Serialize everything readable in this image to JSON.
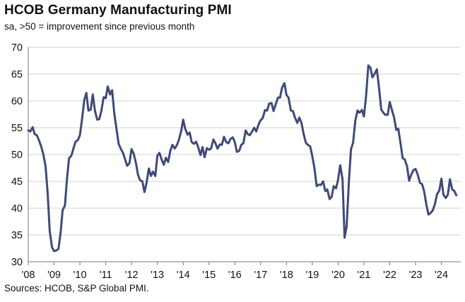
{
  "chart_data": {
    "type": "line",
    "title": "HCOB Germany Manufacturing PMI",
    "subtitle": "sa, >50 = improvement since previous month",
    "source": "Sources: HCOB, S&P Global PMI.",
    "xlabel": "",
    "ylabel": "",
    "ylim": [
      30,
      70
    ],
    "yticks": [
      30,
      35,
      40,
      45,
      50,
      55,
      60,
      65,
      70
    ],
    "xlim": [
      2008.0,
      2024.75
    ],
    "xtick_labels": [
      "'08",
      "'09",
      "'10",
      "'11",
      "'12",
      "'13",
      "'14",
      "'15",
      "'16",
      "'17",
      "'18",
      "'19",
      "'20",
      "'21",
      "'22",
      "'23",
      "'24"
    ],
    "grid": "horizontal",
    "series": [
      {
        "name": "HCOB Germany Manufacturing PMI",
        "color": "#3f4a78",
        "points": [
          [
            2008.0,
            54.5
          ],
          [
            2008.08,
            54.3
          ],
          [
            2008.17,
            55.1
          ],
          [
            2008.25,
            53.8
          ],
          [
            2008.33,
            53.6
          ],
          [
            2008.42,
            52.6
          ],
          [
            2008.5,
            51.5
          ],
          [
            2008.58,
            50.1
          ],
          [
            2008.67,
            47.8
          ],
          [
            2008.75,
            42.9
          ],
          [
            2008.83,
            35.8
          ],
          [
            2008.92,
            32.7
          ],
          [
            2009.0,
            32.0
          ],
          [
            2009.08,
            32.1
          ],
          [
            2009.17,
            32.4
          ],
          [
            2009.25,
            35.3
          ],
          [
            2009.33,
            39.6
          ],
          [
            2009.42,
            40.5
          ],
          [
            2009.5,
            45.5
          ],
          [
            2009.58,
            49.3
          ],
          [
            2009.67,
            49.8
          ],
          [
            2009.75,
            51.1
          ],
          [
            2009.83,
            52.4
          ],
          [
            2009.92,
            52.7
          ],
          [
            2010.0,
            53.6
          ],
          [
            2010.08,
            56.5
          ],
          [
            2010.17,
            60.2
          ],
          [
            2010.25,
            61.5
          ],
          [
            2010.33,
            58.2
          ],
          [
            2010.42,
            58.4
          ],
          [
            2010.5,
            61.2
          ],
          [
            2010.58,
            58.2
          ],
          [
            2010.67,
            56.5
          ],
          [
            2010.75,
            56.6
          ],
          [
            2010.83,
            58.1
          ],
          [
            2010.92,
            60.7
          ],
          [
            2011.0,
            60.5
          ],
          [
            2011.08,
            62.7
          ],
          [
            2011.17,
            61.2
          ],
          [
            2011.25,
            62.0
          ],
          [
            2011.33,
            57.7
          ],
          [
            2011.42,
            54.6
          ],
          [
            2011.5,
            52.0
          ],
          [
            2011.58,
            51.1
          ],
          [
            2011.67,
            50.3
          ],
          [
            2011.75,
            49.1
          ],
          [
            2011.83,
            47.9
          ],
          [
            2011.92,
            48.4
          ],
          [
            2012.0,
            51.0
          ],
          [
            2012.08,
            50.2
          ],
          [
            2012.17,
            48.4
          ],
          [
            2012.25,
            46.2
          ],
          [
            2012.33,
            45.2
          ],
          [
            2012.42,
            45.0
          ],
          [
            2012.5,
            43.0
          ],
          [
            2012.58,
            44.7
          ],
          [
            2012.67,
            47.4
          ],
          [
            2012.75,
            46.0
          ],
          [
            2012.83,
            46.8
          ],
          [
            2012.92,
            46.0
          ],
          [
            2013.0,
            49.8
          ],
          [
            2013.08,
            50.3
          ],
          [
            2013.17,
            49.0
          ],
          [
            2013.25,
            48.1
          ],
          [
            2013.33,
            49.4
          ],
          [
            2013.42,
            48.6
          ],
          [
            2013.5,
            50.7
          ],
          [
            2013.58,
            51.8
          ],
          [
            2013.67,
            51.1
          ],
          [
            2013.75,
            51.7
          ],
          [
            2013.83,
            52.7
          ],
          [
            2013.92,
            54.3
          ],
          [
            2014.0,
            56.5
          ],
          [
            2014.08,
            54.8
          ],
          [
            2014.17,
            53.7
          ],
          [
            2014.25,
            54.1
          ],
          [
            2014.33,
            52.3
          ],
          [
            2014.42,
            52.0
          ],
          [
            2014.5,
            52.4
          ],
          [
            2014.58,
            51.4
          ],
          [
            2014.67,
            49.9
          ],
          [
            2014.75,
            51.4
          ],
          [
            2014.83,
            49.5
          ],
          [
            2014.92,
            51.2
          ],
          [
            2015.0,
            50.9
          ],
          [
            2015.08,
            51.1
          ],
          [
            2015.17,
            52.8
          ],
          [
            2015.25,
            52.1
          ],
          [
            2015.33,
            51.1
          ],
          [
            2015.42,
            51.9
          ],
          [
            2015.5,
            51.8
          ],
          [
            2015.58,
            53.3
          ],
          [
            2015.67,
            52.3
          ],
          [
            2015.75,
            52.1
          ],
          [
            2015.83,
            52.9
          ],
          [
            2015.92,
            53.2
          ],
          [
            2016.0,
            52.3
          ],
          [
            2016.08,
            50.5
          ],
          [
            2016.17,
            50.7
          ],
          [
            2016.25,
            51.8
          ],
          [
            2016.33,
            52.1
          ],
          [
            2016.42,
            54.5
          ],
          [
            2016.5,
            53.8
          ],
          [
            2016.58,
            53.6
          ],
          [
            2016.67,
            54.3
          ],
          [
            2016.75,
            55.0
          ],
          [
            2016.83,
            54.3
          ],
          [
            2016.92,
            55.6
          ],
          [
            2017.0,
            56.4
          ],
          [
            2017.08,
            56.8
          ],
          [
            2017.17,
            58.3
          ],
          [
            2017.25,
            58.2
          ],
          [
            2017.33,
            59.5
          ],
          [
            2017.42,
            59.6
          ],
          [
            2017.5,
            58.1
          ],
          [
            2017.58,
            59.3
          ],
          [
            2017.67,
            60.6
          ],
          [
            2017.75,
            60.6
          ],
          [
            2017.83,
            62.5
          ],
          [
            2017.92,
            63.3
          ],
          [
            2018.0,
            61.1
          ],
          [
            2018.08,
            60.6
          ],
          [
            2018.17,
            58.2
          ],
          [
            2018.25,
            58.1
          ],
          [
            2018.33,
            56.9
          ],
          [
            2018.42,
            55.9
          ],
          [
            2018.5,
            56.9
          ],
          [
            2018.58,
            55.9
          ],
          [
            2018.67,
            53.7
          ],
          [
            2018.75,
            52.2
          ],
          [
            2018.83,
            51.8
          ],
          [
            2018.92,
            51.5
          ],
          [
            2019.0,
            49.7
          ],
          [
            2019.08,
            47.6
          ],
          [
            2019.17,
            44.1
          ],
          [
            2019.25,
            44.4
          ],
          [
            2019.33,
            44.3
          ],
          [
            2019.42,
            45.0
          ],
          [
            2019.5,
            43.2
          ],
          [
            2019.58,
            43.5
          ],
          [
            2019.67,
            41.7
          ],
          [
            2019.75,
            42.1
          ],
          [
            2019.83,
            44.1
          ],
          [
            2019.92,
            43.7
          ],
          [
            2020.0,
            45.3
          ],
          [
            2020.08,
            48.0
          ],
          [
            2020.17,
            45.4
          ],
          [
            2020.25,
            34.5
          ],
          [
            2020.33,
            36.6
          ],
          [
            2020.42,
            45.2
          ],
          [
            2020.5,
            51.0
          ],
          [
            2020.58,
            52.2
          ],
          [
            2020.67,
            56.4
          ],
          [
            2020.75,
            58.2
          ],
          [
            2020.83,
            57.8
          ],
          [
            2020.92,
            58.3
          ],
          [
            2021.0,
            57.1
          ],
          [
            2021.08,
            60.7
          ],
          [
            2021.17,
            66.6
          ],
          [
            2021.25,
            66.2
          ],
          [
            2021.33,
            64.4
          ],
          [
            2021.42,
            65.1
          ],
          [
            2021.5,
            65.9
          ],
          [
            2021.58,
            62.6
          ],
          [
            2021.67,
            58.4
          ],
          [
            2021.75,
            57.8
          ],
          [
            2021.83,
            57.4
          ],
          [
            2021.92,
            57.4
          ],
          [
            2022.0,
            59.8
          ],
          [
            2022.08,
            58.4
          ],
          [
            2022.17,
            56.9
          ],
          [
            2022.25,
            54.6
          ],
          [
            2022.33,
            54.8
          ],
          [
            2022.42,
            52.0
          ],
          [
            2022.5,
            49.3
          ],
          [
            2022.58,
            49.1
          ],
          [
            2022.67,
            47.8
          ],
          [
            2022.75,
            45.1
          ],
          [
            2022.83,
            46.2
          ],
          [
            2022.92,
            47.1
          ],
          [
            2023.0,
            47.3
          ],
          [
            2023.08,
            46.3
          ],
          [
            2023.17,
            44.7
          ],
          [
            2023.25,
            44.5
          ],
          [
            2023.33,
            43.2
          ],
          [
            2023.42,
            40.6
          ],
          [
            2023.5,
            38.8
          ],
          [
            2023.58,
            39.1
          ],
          [
            2023.67,
            39.6
          ],
          [
            2023.75,
            40.8
          ],
          [
            2023.83,
            42.6
          ],
          [
            2023.92,
            43.3
          ],
          [
            2024.0,
            45.5
          ],
          [
            2024.08,
            42.5
          ],
          [
            2024.17,
            41.9
          ],
          [
            2024.25,
            42.5
          ],
          [
            2024.33,
            45.4
          ],
          [
            2024.42,
            43.5
          ],
          [
            2024.5,
            43.2
          ],
          [
            2024.58,
            42.4
          ]
        ]
      }
    ]
  }
}
